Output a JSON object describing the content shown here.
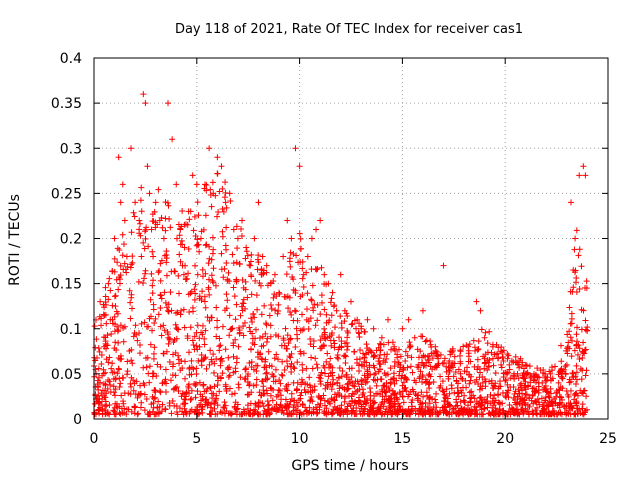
{
  "chart_data": {
    "type": "scatter",
    "title": "Day 118 of 2021, Rate Of TEC Index for receiver cas1",
    "xlabel": "GPS time / hours",
    "ylabel": "ROTI / TECUs",
    "xlim": [
      0,
      25
    ],
    "ylim": [
      0,
      0.4
    ],
    "x_ticks": [
      "0",
      "5",
      "10",
      "15",
      "20",
      "25"
    ],
    "y_ticks": [
      "0",
      "0.05",
      "0.1",
      "0.15",
      "0.2",
      "0.25",
      "0.3",
      "0.35",
      "0.4"
    ],
    "grid": true,
    "marker": "+",
    "color": "#ff0000",
    "series": [
      {
        "x": [
          0.1,
          0.3,
          0.5,
          0.7,
          0.9,
          1.0,
          1.2,
          1.3,
          1.4,
          1.5,
          1.6,
          1.8,
          2.0,
          2.2,
          2.4,
          2.5,
          2.6,
          2.7,
          2.8,
          3.0,
          3.2,
          3.4,
          3.6,
          3.8,
          4.0,
          4.2,
          4.4,
          4.6,
          4.8,
          5.0,
          5.2,
          5.4,
          5.6,
          5.8,
          6.0,
          6.2,
          6.4,
          6.6,
          6.8,
          7.0,
          7.2,
          7.4,
          7.6,
          7.8,
          8.0,
          8.2,
          8.4,
          8.6,
          8.8,
          9.0,
          9.2,
          9.4,
          9.6,
          9.8,
          10.0,
          10.2,
          10.4,
          10.6,
          10.8,
          11.0,
          11.2,
          11.4,
          11.6,
          11.8,
          12.0,
          12.2,
          12.5,
          12.8,
          13.0,
          13.3,
          13.6,
          14.0,
          14.3,
          14.6,
          15.0,
          15.3,
          15.6,
          16.0,
          16.3,
          16.6,
          17.0,
          17.4,
          17.8,
          18.2,
          18.6,
          18.8,
          19.0,
          19.4,
          19.8,
          20.2,
          20.6,
          21.0,
          21.4,
          21.8,
          22.2,
          22.6,
          23.0,
          23.2,
          23.4,
          23.6,
          23.8,
          23.9
        ],
        "y": [
          0.05,
          0.13,
          0.08,
          0.15,
          0.11,
          0.2,
          0.29,
          0.24,
          0.26,
          0.22,
          0.18,
          0.3,
          0.24,
          0.22,
          0.36,
          0.35,
          0.28,
          0.25,
          0.21,
          0.24,
          0.22,
          0.2,
          0.35,
          0.31,
          0.26,
          0.21,
          0.19,
          0.23,
          0.27,
          0.26,
          0.2,
          0.26,
          0.3,
          0.25,
          0.29,
          0.28,
          0.24,
          0.25,
          0.21,
          0.2,
          0.22,
          0.19,
          0.17,
          0.2,
          0.24,
          0.18,
          0.17,
          0.15,
          0.16,
          0.14,
          0.18,
          0.22,
          0.2,
          0.3,
          0.28,
          0.16,
          0.18,
          0.2,
          0.21,
          0.22,
          0.16,
          0.15,
          0.14,
          0.12,
          0.16,
          0.12,
          0.13,
          0.11,
          0.1,
          0.11,
          0.1,
          0.09,
          0.11,
          0.08,
          0.1,
          0.11,
          0.09,
          0.12,
          0.07,
          0.08,
          0.17,
          0.06,
          0.07,
          0.08,
          0.13,
          0.12,
          0.09,
          0.08,
          0.06,
          0.06,
          0.05,
          0.06,
          0.05,
          0.04,
          0.05,
          0.04,
          0.06,
          0.24,
          0.2,
          0.27,
          0.28,
          0.27
        ]
      }
    ],
    "envelope": {
      "x": [
        0,
        1,
        2,
        2.5,
        3,
        3.5,
        4,
        5,
        5.5,
        6,
        6.5,
        7,
        8,
        9,
        10,
        10.5,
        11,
        11.5,
        12,
        13,
        14,
        15,
        16,
        17,
        18,
        19,
        20,
        21,
        22,
        22.5,
        23,
        23.3,
        23.6,
        23.9,
        24
      ],
      "y": [
        0.1,
        0.18,
        0.24,
        0.27,
        0.25,
        0.25,
        0.22,
        0.24,
        0.27,
        0.27,
        0.26,
        0.21,
        0.18,
        0.15,
        0.21,
        0.16,
        0.17,
        0.13,
        0.12,
        0.1,
        0.08,
        0.08,
        0.09,
        0.07,
        0.08,
        0.1,
        0.07,
        0.06,
        0.05,
        0.06,
        0.1,
        0.18,
        0.22,
        0.2,
        0.12
      ]
    }
  }
}
